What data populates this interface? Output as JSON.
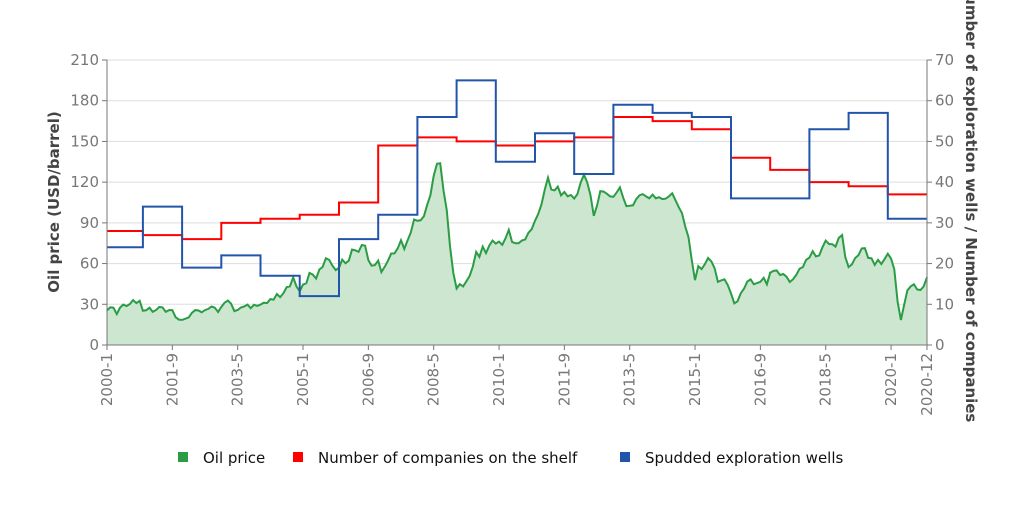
{
  "chart_data": {
    "type": "line",
    "x_start": "2000-1",
    "x_end": "2020-12",
    "x_ticks": [
      "2000-1",
      "2001-9",
      "2003-5",
      "2005-1",
      "2006-9",
      "2008-5",
      "2010-1",
      "2011-9",
      "2013-5",
      "2015-1",
      "2016-9",
      "2018-5",
      "2020-1",
      "2020-12"
    ],
    "y_left": {
      "label": "Oil price (USD/barrel)",
      "range": [
        0,
        210
      ],
      "ticks": [
        0,
        30,
        60,
        90,
        120,
        150,
        180,
        210
      ]
    },
    "y_right": {
      "label": "Number of exploration wells / Number of companies",
      "range": [
        0,
        70
      ],
      "ticks": [
        0,
        10,
        20,
        30,
        40,
        50,
        60,
        70
      ]
    },
    "grid": true,
    "legend_position": "bottom",
    "series": [
      {
        "name": "Oil price",
        "axis": "left",
        "style": "area",
        "color": "#2a9d44",
        "fill": "#cce6d0",
        "frequency": "monthly",
        "values": [
          25.5,
          27.8,
          27.5,
          22.8,
          27.6,
          29.8,
          28.7,
          30.2,
          33.1,
          30.9,
          32.6,
          25.2,
          25.6,
          27.5,
          24.5,
          25.7,
          28.1,
          27.7,
          24.5,
          25.7,
          25.7,
          20.5,
          18.7,
          18.5,
          19.4,
          20.3,
          23.7,
          25.7,
          25.4,
          24.1,
          25.7,
          26.6,
          28.4,
          27.5,
          24.3,
          28.0,
          31.2,
          32.8,
          30.4,
          25.0,
          25.8,
          27.6,
          28.4,
          29.8,
          27.1,
          29.6,
          28.8,
          29.8,
          31.2,
          30.9,
          33.8,
          33.4,
          37.6,
          35.2,
          38.2,
          42.7,
          43.2,
          49.8,
          43.1,
          39.6,
          44.5,
          45.5,
          53.1,
          51.9,
          49.0,
          55.6,
          57.5,
          63.9,
          62.7,
          58.5,
          55.2,
          56.9,
          62.9,
          60.2,
          62.1,
          70.3,
          69.8,
          68.7,
          73.7,
          73.2,
          62.5,
          58.4,
          58.9,
          62.2,
          53.7,
          57.6,
          62.1,
          67.4,
          67.5,
          71.3,
          77.2,
          70.8,
          77.1,
          82.9,
          92.5,
          91.5,
          91.9,
          94.8,
          103.3,
          110.4,
          124.6,
          133.5,
          133.9,
          113.9,
          99.1,
          72.8,
          53.2,
          41.6,
          44.9,
          43.2,
          47.0,
          50.8,
          57.9,
          68.6,
          64.9,
          72.5,
          67.7,
          73.2,
          77.0,
          74.7,
          76.2,
          73.8,
          78.8,
          84.8,
          75.9,
          75.0,
          75.0,
          77.0,
          77.8,
          82.7,
          85.3,
          91.5,
          96.5,
          103.7,
          114.6,
          123.3,
          114.5,
          113.9,
          116.7,
          110.2,
          112.8,
          109.6,
          110.5,
          107.9,
          111.2,
          119.7,
          125.5,
          119.8,
          110.3,
          95.2,
          102.6,
          113.4,
          113.0,
          111.5,
          109.5,
          109.2,
          112.3,
          116.1,
          108.5,
          102.3,
          102.6,
          102.9,
          107.4,
          110.3,
          111.2,
          109.5,
          108.1,
          110.8,
          108.1,
          108.9,
          107.5,
          107.8,
          109.5,
          111.8,
          106.8,
          101.6,
          97.1,
          87.4,
          79.4,
          62.3,
          47.8,
          58.1,
          55.9,
          59.5,
          64.1,
          61.5,
          56.6,
          46.5,
          47.6,
          48.4,
          44.3,
          38.0,
          30.7,
          32.2,
          38.2,
          41.6,
          46.7,
          48.3,
          44.7,
          45.7,
          46.6,
          49.5,
          44.7,
          53.3,
          54.6,
          54.9,
          51.6,
          52.3,
          50.3,
          46.4,
          48.5,
          51.7,
          56.2,
          57.5,
          62.7,
          64.4,
          69.1,
          65.3,
          66.0,
          72.1,
          76.9,
          74.4,
          74.3,
          72.5,
          78.9,
          81.0,
          64.8,
          57.4,
          59.4,
          64.0,
          66.1,
          71.2,
          71.3,
          64.2,
          63.9,
          59.0,
          62.8,
          59.7,
          63.2,
          67.3,
          63.6,
          55.7,
          32.0,
          18.4,
          29.4,
          40.3,
          43.2,
          44.7,
          40.9,
          40.5,
          43.2,
          49.9
        ]
      },
      {
        "name": "Number of companies on the shelf",
        "axis": "right",
        "style": "step",
        "color": "#ff0000",
        "frequency": "yearly",
        "years": [
          2000,
          2001,
          2002,
          2003,
          2004,
          2005,
          2006,
          2007,
          2008,
          2009,
          2010,
          2011,
          2012,
          2013,
          2014,
          2015,
          2016,
          2017,
          2018,
          2019,
          2020
        ],
        "values": [
          28,
          27,
          26,
          30,
          31,
          32,
          35,
          49,
          51,
          50,
          49,
          50,
          51,
          56,
          55,
          53,
          46,
          43,
          40,
          39,
          37
        ]
      },
      {
        "name": "Spudded exploration wells",
        "axis": "right",
        "style": "step",
        "color": "#2255aa",
        "frequency": "yearly",
        "years": [
          2000,
          2001,
          2002,
          2003,
          2004,
          2005,
          2006,
          2007,
          2008,
          2009,
          2010,
          2011,
          2012,
          2013,
          2014,
          2015,
          2016,
          2017,
          2018,
          2019,
          2020
        ],
        "values": [
          24,
          34,
          19,
          22,
          17,
          12,
          26,
          32,
          56,
          65,
          45,
          52,
          42,
          59,
          57,
          56,
          36,
          36,
          53,
          57,
          31
        ]
      }
    ]
  }
}
